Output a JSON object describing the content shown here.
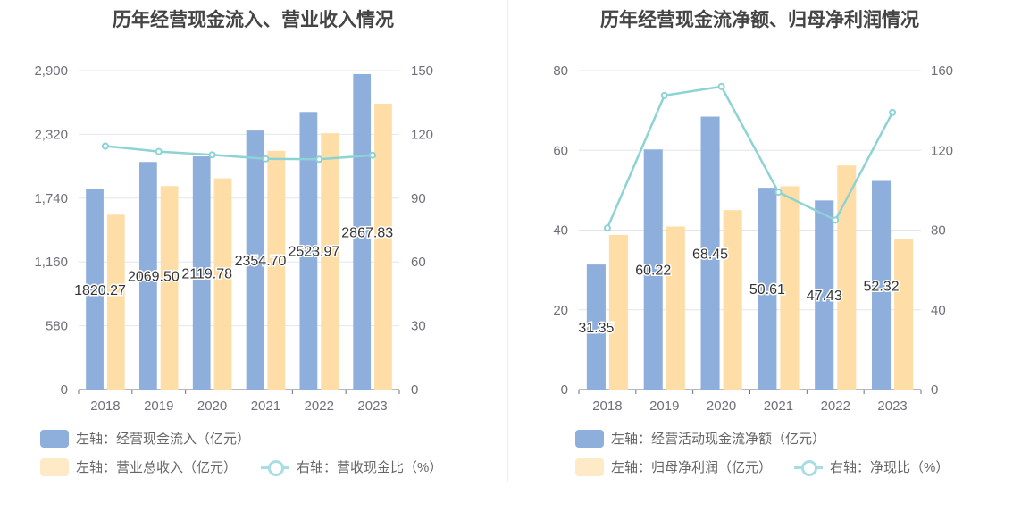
{
  "charts": [
    {
      "title": "历年经营现金流入、营业收入情况",
      "legend": {
        "bar1": "左轴：经营现金流入（亿元）",
        "bar2": "左轴：营业总收入（亿元）",
        "line": "右轴：营收现金比（%）"
      }
    },
    {
      "title": "历年经营现金流净额、归母净利润情况",
      "legend": {
        "bar1": "左轴：经营活动现金流净额（亿元）",
        "bar2": "左轴：归母净利润（亿元）",
        "line": "右轴：净现比（%）"
      }
    }
  ],
  "colors": {
    "bar1": "#8eaedb",
    "bar2": "#ffdda6",
    "line": "#8dd3d6",
    "axis": "#6e7079",
    "grid": "#e0e6f1",
    "label": "#333333"
  },
  "chart_data": [
    {
      "type": "bar",
      "title": "历年经营现金流入、营业收入情况",
      "categories": [
        "2018",
        "2019",
        "2020",
        "2021",
        "2022",
        "2023"
      ],
      "left_axis": {
        "min": 0,
        "max": 2900,
        "ticks": [
          "0",
          "580",
          "1,160",
          "1,740",
          "2,320",
          "2,900"
        ]
      },
      "right_axis": {
        "min": 0,
        "max": 150,
        "ticks": [
          "0",
          "30",
          "60",
          "90",
          "120",
          "150"
        ]
      },
      "series": [
        {
          "name": "左轴：经营现金流入（亿元）",
          "type": "bar",
          "axis": "left",
          "values": [
            1820.27,
            2069.5,
            2119.78,
            2354.7,
            2523.97,
            2867.83
          ],
          "labels": [
            "1820.27",
            "2069.50",
            "2119.78",
            "2354.70",
            "2523.97",
            "2867.83"
          ]
        },
        {
          "name": "左轴：营业总收入（亿元）",
          "type": "bar",
          "axis": "left",
          "values": [
            1590,
            1850,
            1920,
            2170,
            2330,
            2600
          ]
        },
        {
          "name": "右轴：营收现金比（%）",
          "type": "line",
          "axis": "right",
          "values": [
            114.5,
            111.9,
            110.4,
            108.5,
            108.3,
            110.2
          ]
        }
      ]
    },
    {
      "type": "bar",
      "title": "历年经营现金流净额、归母净利润情况",
      "categories": [
        "2018",
        "2019",
        "2020",
        "2021",
        "2022",
        "2023"
      ],
      "left_axis": {
        "min": 0,
        "max": 80,
        "ticks": [
          "0",
          "20",
          "40",
          "60",
          "80"
        ]
      },
      "right_axis": {
        "min": 0,
        "max": 160,
        "ticks": [
          "0",
          "40",
          "80",
          "120",
          "160"
        ]
      },
      "series": [
        {
          "name": "左轴：经营活动现金流净额（亿元）",
          "type": "bar",
          "axis": "left",
          "values": [
            31.35,
            60.22,
            68.45,
            50.61,
            47.43,
            52.32
          ],
          "labels": [
            "31.35",
            "60.22",
            "68.45",
            "50.61",
            "47.43",
            "52.32"
          ]
        },
        {
          "name": "左轴：归母净利润（亿元）",
          "type": "bar",
          "axis": "left",
          "values": [
            38.8,
            40.9,
            45.0,
            51.0,
            56.2,
            37.8
          ]
        },
        {
          "name": "右轴：净现比（%）",
          "type": "line",
          "axis": "right",
          "values": [
            81,
            147.5,
            152,
            99,
            85,
            139
          ]
        }
      ]
    }
  ]
}
